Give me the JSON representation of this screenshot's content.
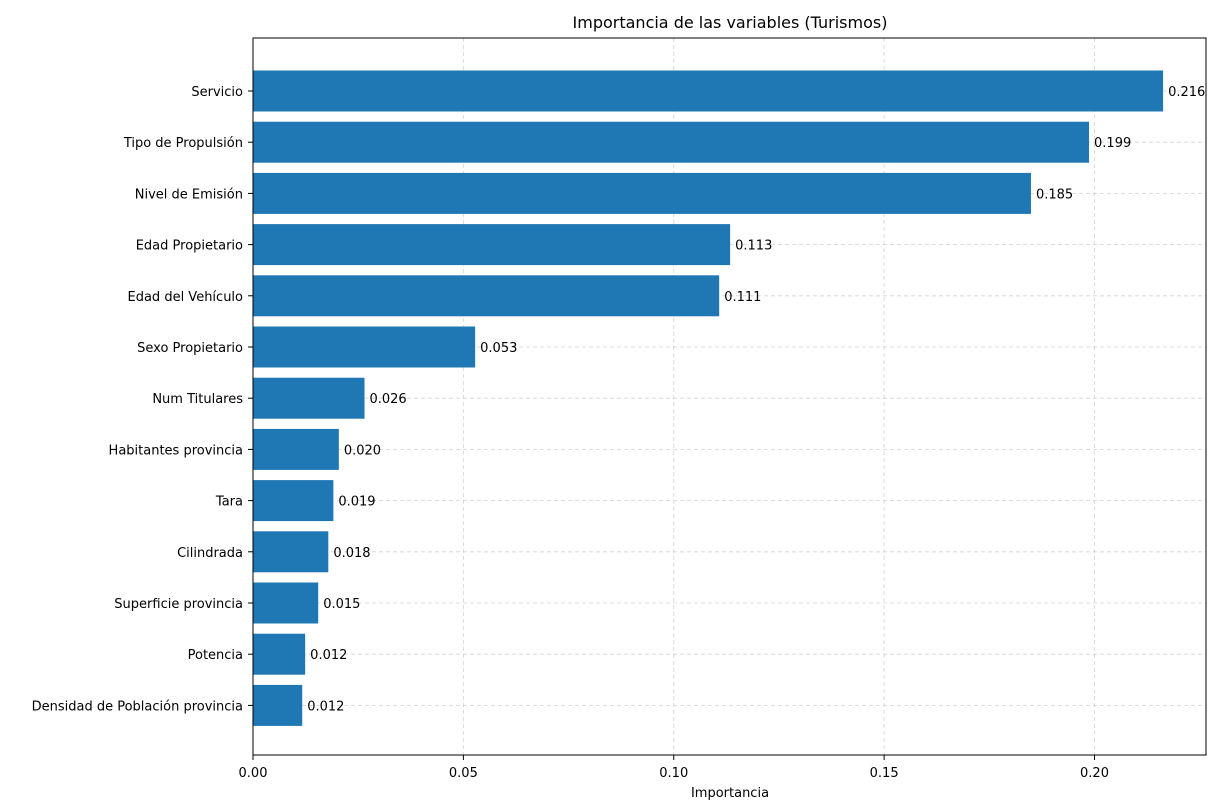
{
  "chart_data": {
    "type": "bar",
    "orientation": "horizontal",
    "title": "Importancia de las variables (Turismos)",
    "xlabel": "Importancia",
    "ylabel": "",
    "xlim": [
      0,
      0.2265
    ],
    "xticks": [
      0.0,
      0.05,
      0.1,
      0.15,
      0.2
    ],
    "xtick_labels": [
      "0.00",
      "0.05",
      "0.10",
      "0.15",
      "0.20"
    ],
    "grid": true,
    "color": "#1f77b4",
    "categories": [
      "Servicio",
      "Tipo de Propulsión",
      "Nivel de Emisión",
      "Edad Propietario",
      "Edad del Vehículo",
      "Sexo Propietario",
      "Num Titulares",
      "Habitantes provincia",
      "Tara",
      "Cilindrada",
      "Superficie provincia",
      "Potencia",
      "Densidad de Población provincia"
    ],
    "values": [
      0.2163,
      0.1987,
      0.1849,
      0.1134,
      0.1108,
      0.0528,
      0.0265,
      0.0204,
      0.0191,
      0.0179,
      0.0155,
      0.0124,
      0.0117
    ],
    "data_labels": [
      "0.216",
      "0.199",
      "0.185",
      "0.113",
      "0.111",
      "0.053",
      "0.026",
      "0.020",
      "0.019",
      "0.018",
      "0.015",
      "0.012",
      "0.012"
    ]
  }
}
